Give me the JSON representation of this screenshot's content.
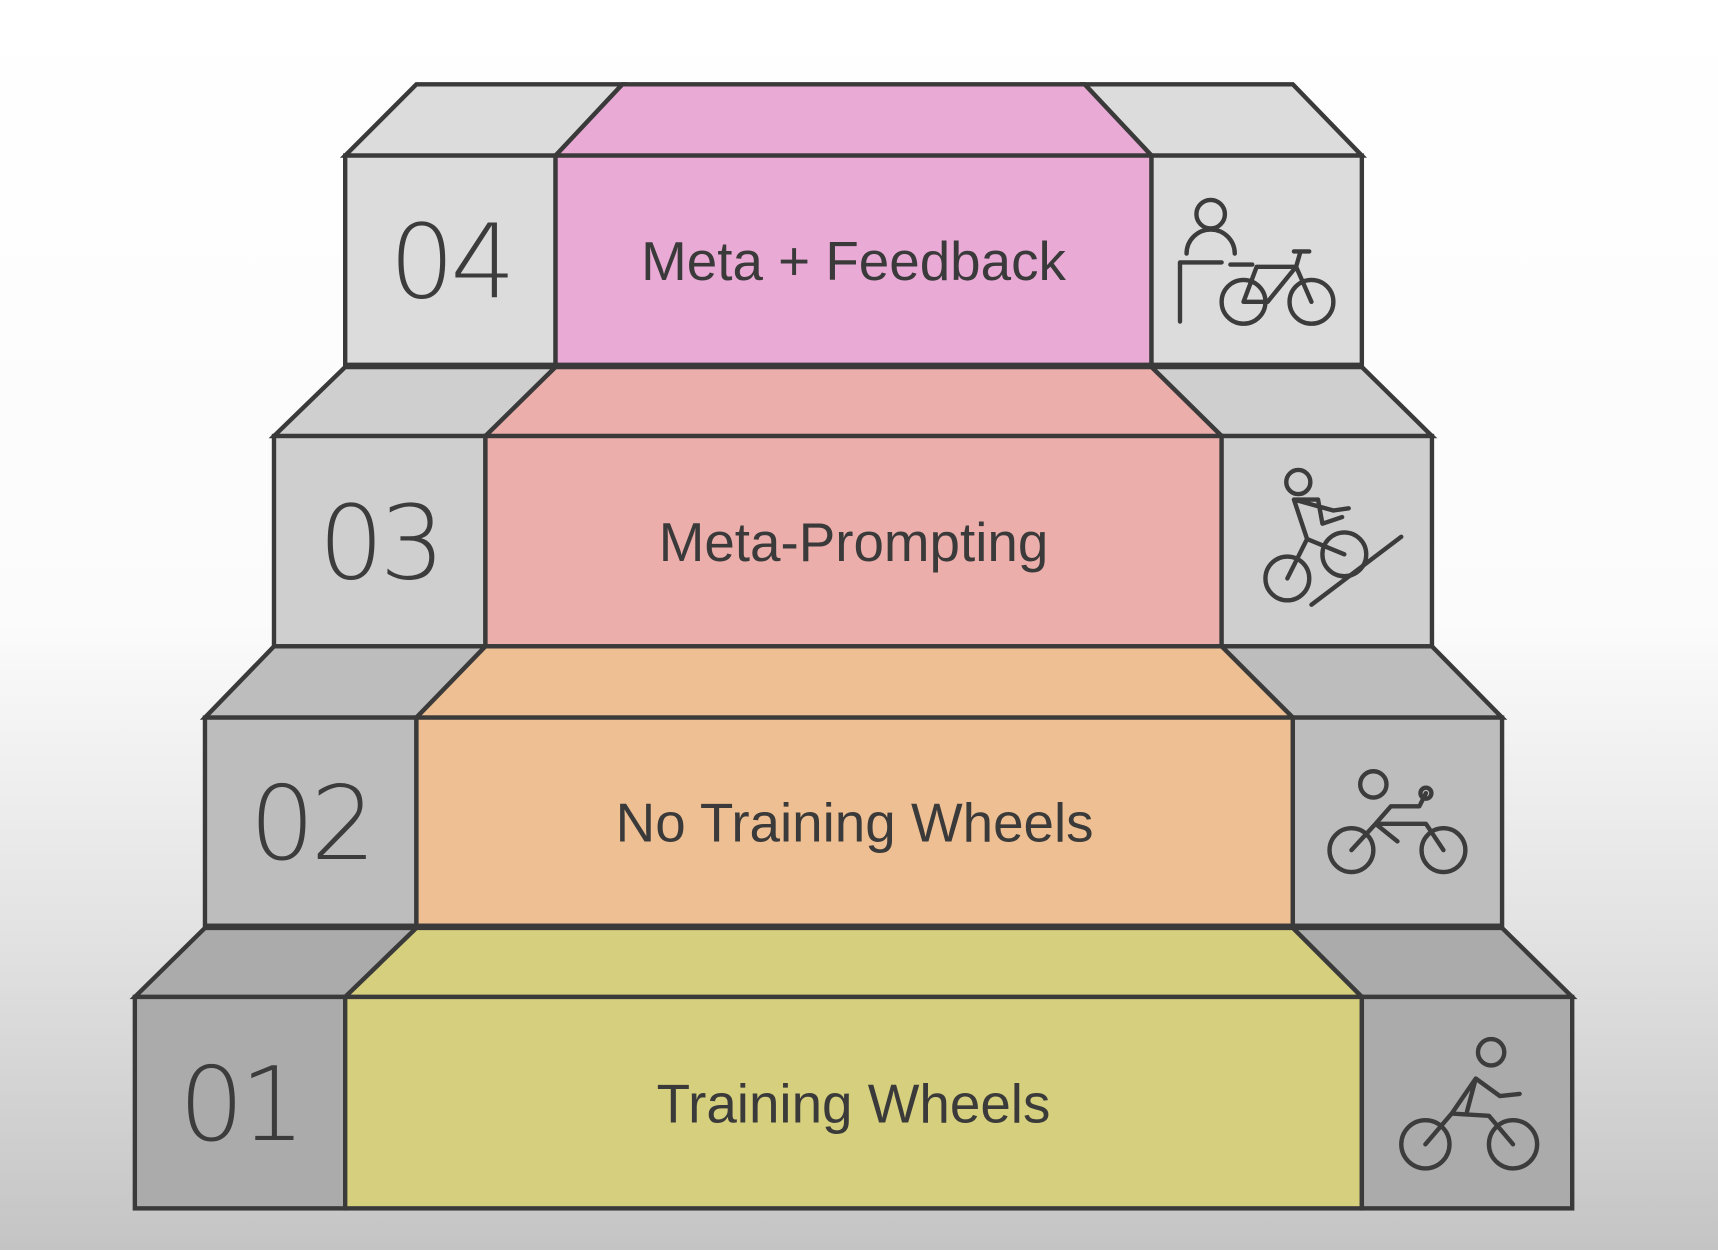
{
  "steps": [
    {
      "number": "01",
      "label": "Training Wheels",
      "color": "#d6cf7e",
      "side_color": "#ababab",
      "icon": "cyclist-icon"
    },
    {
      "number": "02",
      "label": "No Training Wheels",
      "color": "#eebf92",
      "side_color": "#bdbdbd",
      "icon": "reclined-cyclist-icon"
    },
    {
      "number": "03",
      "label": "Meta-Prompting",
      "color": "#ebaeaa",
      "side_color": "#cfcfcf",
      "icon": "uphill-cyclist-icon"
    },
    {
      "number": "04",
      "label": "Meta + Feedback",
      "color": "#e9aad6",
      "side_color": "#dcdcdc",
      "icon": "person-with-bicycle-icon"
    }
  ]
}
